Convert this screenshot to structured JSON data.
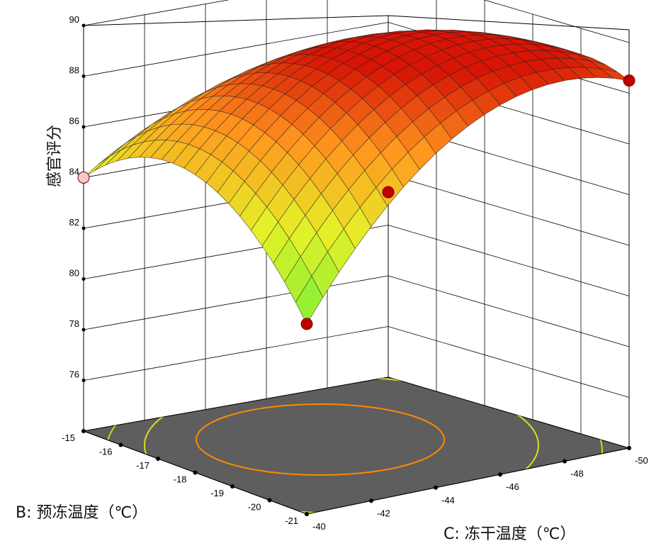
{
  "chart_data": {
    "type": "surface3d",
    "zlabel": "感官评分",
    "xlabel": "B: 预冻温度（℃）",
    "ylabel": "C: 冻干温度（℃）",
    "z_ticks": [
      "90",
      "88",
      "86",
      "84",
      "82",
      "80",
      "78",
      "76"
    ],
    "zlim": [
      74,
      90
    ],
    "b_ticks": [
      "-15",
      "-16",
      "-17",
      "-18",
      "-19",
      "-20",
      "-21"
    ],
    "b_range": [
      -21,
      -15
    ],
    "c_ticks": [
      "-40",
      "-42",
      "-44",
      "-46",
      "-48",
      "-50"
    ],
    "c_range": [
      -50,
      -40
    ],
    "surface": {
      "corners": {
        "B-15_C-40": 84.0,
        "B-21_C-40": 81.5,
        "B-15_C-50": 81.3,
        "B-21_C-50": 88.5
      },
      "max": 88.5
    },
    "design_points": [
      {
        "b": -21,
        "c": -50,
        "z": 88.5,
        "color": "#c00000"
      },
      {
        "b": -15,
        "c": -40,
        "z": 84.0,
        "color": "#f8c8c8"
      },
      {
        "b": -21,
        "c": -40,
        "z": 81.5,
        "color": "#c00000"
      },
      {
        "b": -15,
        "c": -50,
        "z": 81.3,
        "color": "#c00000"
      }
    ],
    "colors": {
      "floor": "#606060",
      "contour_outer": "#66dd33",
      "contour_mid": "#dddd22",
      "contour_inner": "#ff8800",
      "surface_low": "#55ee33",
      "surface_high": "#dd1100"
    }
  }
}
